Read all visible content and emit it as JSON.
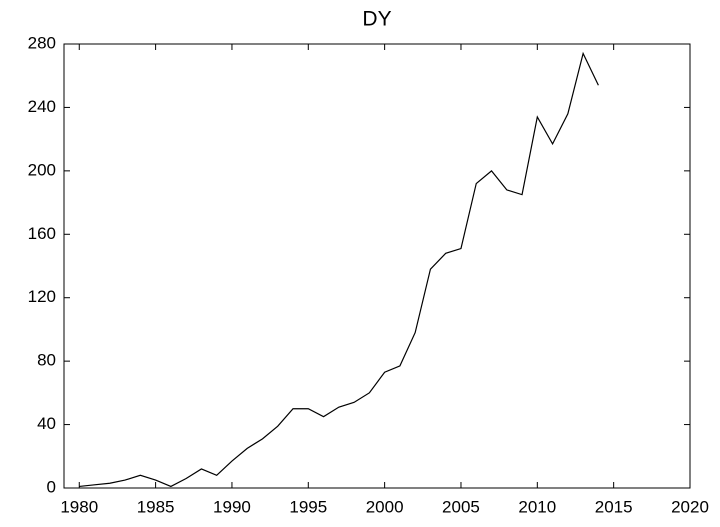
{
  "chart_data": {
    "type": "line",
    "title": "DY",
    "x": [
      1980,
      1981,
      1982,
      1983,
      1984,
      1985,
      1986,
      1987,
      1988,
      1989,
      1990,
      1991,
      1992,
      1993,
      1994,
      1995,
      1996,
      1997,
      1998,
      1999,
      2000,
      2001,
      2002,
      2003,
      2004,
      2005,
      2006,
      2007,
      2008,
      2009,
      2010,
      2011,
      2012,
      2013,
      2014
    ],
    "values": [
      1,
      2,
      3,
      5,
      8,
      5,
      1,
      6,
      12,
      8,
      17,
      25,
      31,
      39,
      50,
      50,
      45,
      51,
      54,
      60,
      73,
      77,
      98,
      138,
      148,
      151,
      192,
      200,
      188,
      185,
      234,
      217,
      236,
      274,
      254
    ],
    "color": "#000000",
    "xlim": [
      1979,
      2020
    ],
    "xticks": [
      1980,
      1985,
      1990,
      1995,
      2000,
      2005,
      2010,
      2015,
      2020
    ],
    "ylim": [
      0,
      280
    ],
    "yticks": [
      0,
      40,
      80,
      120,
      160,
      200,
      240,
      280
    ]
  }
}
